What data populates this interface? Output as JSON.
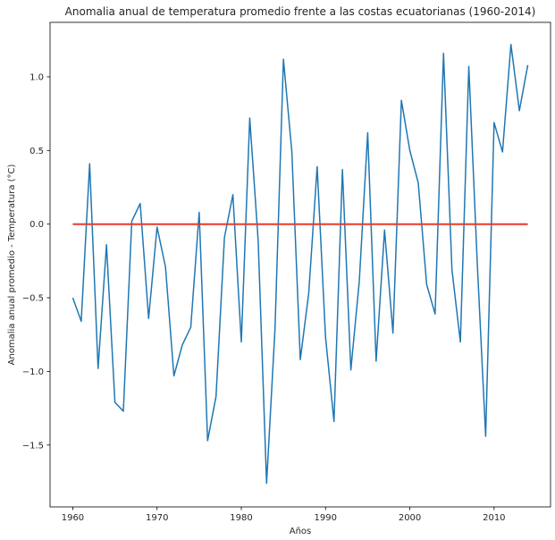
{
  "chart_data": {
    "type": "line",
    "title": "Anomalia anual de temperatura promedio frente a las costas ecuatorianas (1960-2014)",
    "xlabel": "Años",
    "ylabel": "Anomalia anual promedio - Temperatura (°C)",
    "xlim": [
      1957.3,
      2016.7
    ],
    "ylim": [
      -1.92,
      1.37
    ],
    "xticks": [
      1960,
      1970,
      1980,
      1990,
      2000,
      2010
    ],
    "xtick_labels": [
      "1960",
      "1970",
      "1980",
      "1990",
      "2000",
      "2010"
    ],
    "yticks": [
      -1.5,
      -1.0,
      -0.5,
      0.0,
      0.5,
      1.0
    ],
    "ytick_labels": [
      "−1.5",
      "−1.0",
      "−0.5",
      "0.0",
      "0.5",
      "1.0"
    ],
    "grid": false,
    "series": [
      {
        "color": "#1f77b4",
        "x": [
          1960,
          1961,
          1962,
          1963,
          1964,
          1965,
          1966,
          1967,
          1968,
          1969,
          1970,
          1971,
          1972,
          1973,
          1974,
          1975,
          1976,
          1977,
          1978,
          1979,
          1980,
          1981,
          1982,
          1983,
          1984,
          1985,
          1986,
          1987,
          1988,
          1989,
          1990,
          1991,
          1992,
          1993,
          1994,
          1995,
          1996,
          1997,
          1998,
          1999,
          2000,
          2001,
          2002,
          2003,
          2004,
          2005,
          2006,
          2007,
          2008,
          2009,
          2010,
          2011,
          2012,
          2013,
          2014
        ],
        "values": [
          -0.5,
          -0.66,
          0.41,
          -0.98,
          -0.14,
          -1.21,
          -1.27,
          0.02,
          0.14,
          -0.64,
          -0.02,
          -0.29,
          -1.03,
          -0.82,
          -0.7,
          0.08,
          -1.47,
          -1.17,
          -0.09,
          0.2,
          -0.8,
          0.72,
          -0.11,
          -1.76,
          -0.71,
          1.12,
          0.49,
          -0.92,
          -0.47,
          0.39,
          -0.77,
          -1.34,
          0.37,
          -0.99,
          -0.39,
          0.62,
          -0.93,
          -0.04,
          -0.74,
          0.84,
          0.5,
          0.28,
          -0.41,
          -0.61,
          1.16,
          -0.31,
          -0.8,
          1.07,
          -0.26,
          -1.44,
          0.69,
          0.49,
          1.22,
          0.77,
          1.08
        ]
      },
      {
        "color": "#e8392b",
        "x": [
          1960,
          2014
        ],
        "values": [
          0.0,
          0.0
        ]
      }
    ]
  }
}
